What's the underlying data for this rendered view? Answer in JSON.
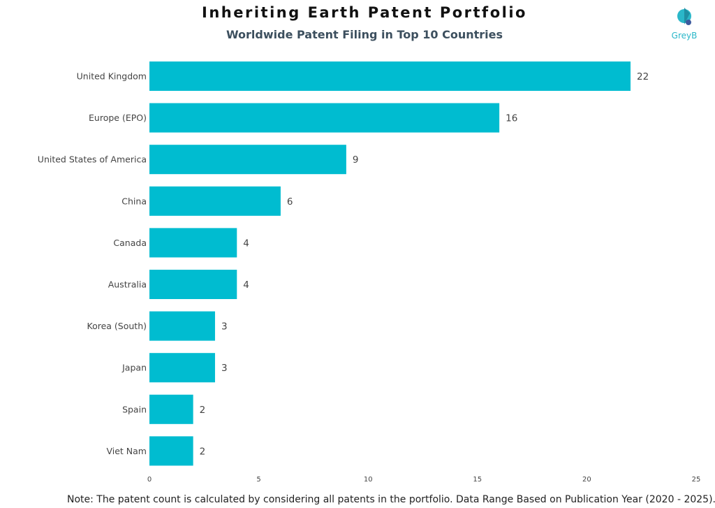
{
  "header": {
    "title": "Inheriting Earth Patent Portfolio",
    "subtitle": "Worldwide Patent Filing in Top 10 Countries"
  },
  "logo": {
    "text": "GreyB",
    "color": "#2ab7c9"
  },
  "note": "Note: The patent count is calculated by considering all patents in the portfolio. Data Range Based on Publication Year (2020 - 2025).",
  "chart_data": {
    "type": "bar",
    "orientation": "horizontal",
    "title": "Inheriting Earth Patent Portfolio",
    "subtitle": "Worldwide Patent Filing in Top 10 Countries",
    "categories": [
      "United Kingdom",
      "Europe (EPO)",
      "United States of America",
      "China",
      "Canada",
      "Australia",
      "Korea (South)",
      "Japan",
      "Spain",
      "Viet Nam"
    ],
    "values": [
      22,
      16,
      9,
      6,
      4,
      4,
      3,
      3,
      2,
      2
    ],
    "xlim": [
      0,
      25
    ],
    "xticks": [
      0,
      5,
      10,
      15,
      20,
      25
    ],
    "grid": false,
    "data_labels": true,
    "bar_color": "#00bcd0"
  }
}
